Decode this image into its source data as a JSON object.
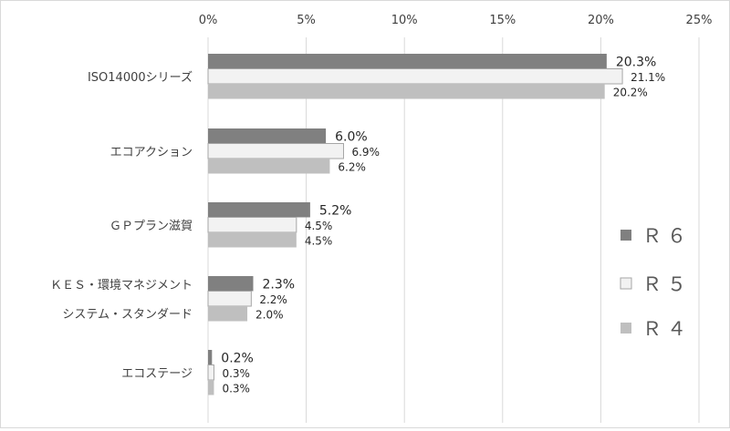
{
  "chart_data": {
    "type": "bar",
    "orientation": "horizontal",
    "title": "",
    "xlabel": "",
    "ylabel": "",
    "xlim": [
      0,
      25
    ],
    "x_ticks": [
      "0%",
      "5%",
      "10%",
      "15%",
      "20%",
      "25%"
    ],
    "x_axis_position": "top",
    "grid": true,
    "legend_position": "right",
    "categories": [
      [
        "ISO14000シリーズ"
      ],
      [
        "エコアクション"
      ],
      [
        "ＧＰプラン滋賀"
      ],
      [
        "ＫＥＳ・環境マネジメント",
        "システム・スタンダード"
      ],
      [
        "エコステージ"
      ]
    ],
    "series": [
      {
        "name": "Ｒ６",
        "color": "#808080",
        "values": [
          20.3,
          6.0,
          5.2,
          2.3,
          0.2
        ],
        "labels": [
          "20.3%",
          "6.0%",
          "5.2%",
          "2.3%",
          "0.2%"
        ]
      },
      {
        "name": "Ｒ５",
        "color": "#f2f2f2",
        "values": [
          21.1,
          6.9,
          4.5,
          2.2,
          0.3
        ],
        "labels": [
          "21.1%",
          "6.9%",
          "4.5%",
          "2.2%",
          "0.3%"
        ]
      },
      {
        "name": "Ｒ４",
        "color": "#bfbfbf",
        "values": [
          20.2,
          6.2,
          4.5,
          2.0,
          0.3
        ],
        "labels": [
          "20.2%",
          "6.2%",
          "4.5%",
          "2.0%",
          "0.3%"
        ]
      }
    ]
  }
}
